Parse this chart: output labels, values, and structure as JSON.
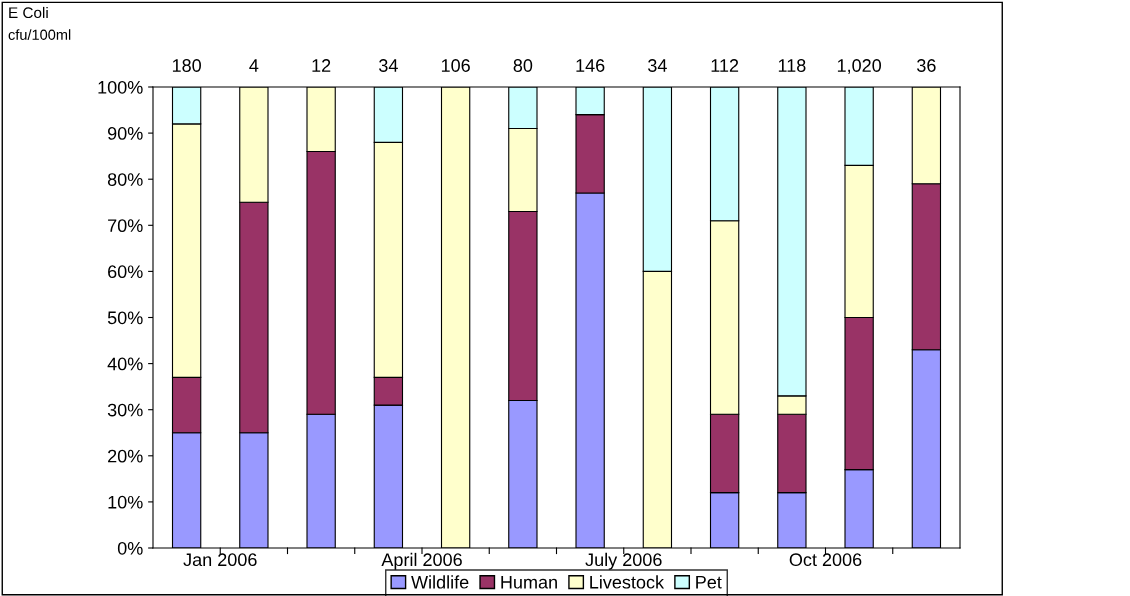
{
  "chart_data": {
    "type": "bar",
    "stacked": true,
    "categories": [
      "Jan 2006",
      null,
      null,
      "April 2006",
      null,
      null,
      "July 2006",
      null,
      null,
      "Oct 2006",
      null,
      null
    ],
    "series": [
      {
        "name": "Wildlife",
        "color": "#9999ff",
        "values": [
          25,
          25,
          29,
          31,
          0,
          32,
          77,
          0,
          12,
          12,
          17,
          43
        ]
      },
      {
        "name": "Human",
        "color": "#993366",
        "values": [
          12,
          50,
          57,
          6,
          0,
          41,
          17,
          0,
          17,
          17,
          33,
          36
        ]
      },
      {
        "name": "Livestock",
        "color": "#ffffcc",
        "values": [
          55,
          25,
          14,
          51,
          100,
          18,
          0,
          60,
          42,
          4,
          33,
          21
        ]
      },
      {
        "name": "Pet",
        "color": "#ccffff",
        "values": [
          8,
          0,
          0,
          12,
          0,
          9,
          6,
          40,
          29,
          67,
          17,
          0
        ]
      }
    ],
    "annotations": [
      "E Coli",
      "cfu/100ml",
      "180",
      "4",
      "12",
      "34",
      "106",
      "80",
      "146",
      "34",
      "112",
      "118",
      "1,020",
      "36"
    ],
    "ylim": [
      0,
      100
    ],
    "yticks": [
      {
        "value": 0,
        "label": "0%"
      },
      {
        "value": 10,
        "label": "10%"
      },
      {
        "value": 20,
        "label": "20%"
      },
      {
        "value": 30,
        "label": "30%"
      },
      {
        "value": 40,
        "label": "40%"
      },
      {
        "value": 50,
        "label": "50%"
      },
      {
        "value": 60,
        "label": "60%"
      },
      {
        "value": 70,
        "label": "70%"
      },
      {
        "value": 80,
        "label": "80%"
      },
      {
        "value": 90,
        "label": "90%"
      },
      {
        "value": 100,
        "label": "100%"
      }
    ],
    "grid": false,
    "legend": "bottom"
  }
}
